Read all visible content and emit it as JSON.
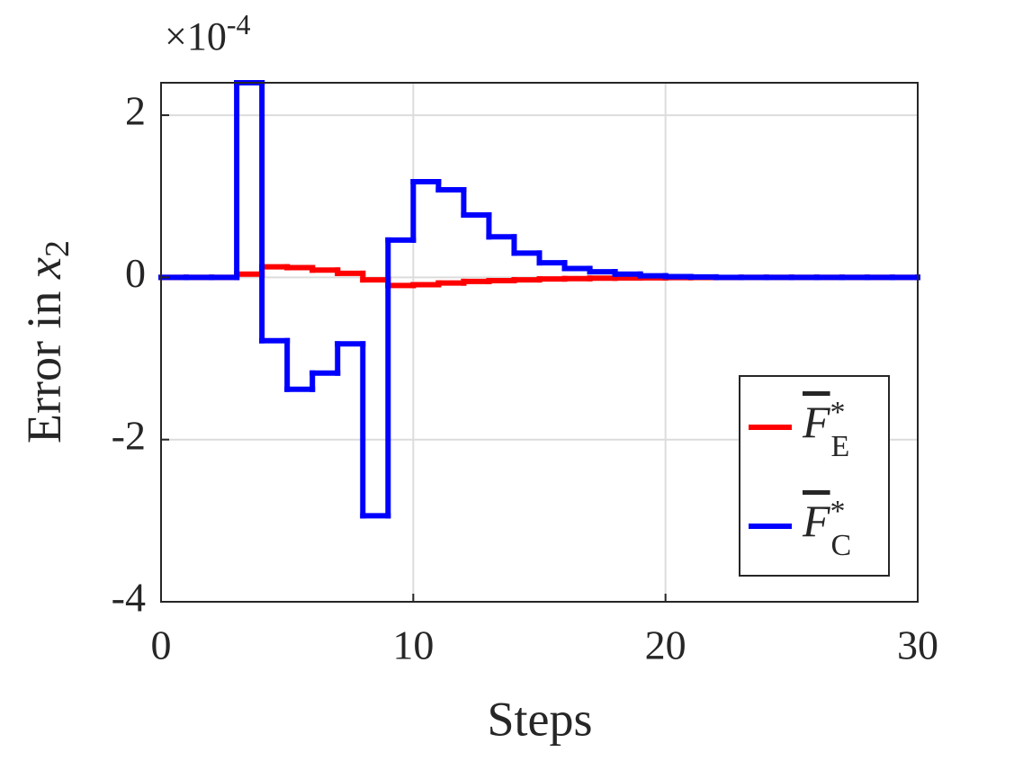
{
  "chart_data": {
    "type": "stairs",
    "xlabel": "Steps",
    "ylabel": {
      "text": "Error in ",
      "var": "x",
      "sub": "2"
    },
    "y_multiplier": {
      "base": "×10",
      "exponent": "-4"
    },
    "x": [
      0,
      1,
      2,
      3,
      4,
      5,
      6,
      7,
      8,
      9,
      10,
      11,
      12,
      13,
      14,
      15,
      16,
      17,
      18,
      19,
      20,
      21,
      22,
      23,
      24,
      25,
      26,
      27,
      28,
      29,
      30
    ],
    "series": [
      {
        "name": {
          "base": "F",
          "sup": "*",
          "sub": "E"
        },
        "color": "#ff0000",
        "values": [
          0,
          0,
          0,
          0.04,
          0.13,
          0.12,
          0.09,
          0.05,
          -0.03,
          -0.1,
          -0.09,
          -0.07,
          -0.05,
          -0.04,
          -0.03,
          -0.02,
          -0.015,
          -0.01,
          -0.007,
          -0.005,
          -0.003,
          -0.002,
          -0.001,
          0,
          0,
          0,
          0,
          0,
          0,
          0,
          0
        ]
      },
      {
        "name": {
          "base": "F",
          "sup": "*",
          "sub": "C"
        },
        "color": "#0000ff",
        "values": [
          0,
          0,
          0,
          2.4,
          -0.78,
          -1.38,
          -1.18,
          -0.82,
          -2.94,
          0.46,
          1.18,
          1.08,
          0.77,
          0.5,
          0.3,
          0.18,
          0.11,
          0.07,
          0.04,
          0.02,
          0.01,
          0.005,
          0,
          0,
          0,
          0,
          0,
          0,
          0,
          0,
          0
        ]
      }
    ],
    "xlim": [
      0,
      30
    ],
    "xticks": [
      0,
      10,
      20,
      30
    ],
    "ylim": [
      -4,
      2.4
    ],
    "yticks": [
      -4,
      -2,
      0,
      2
    ],
    "grid": true,
    "legend": "lower right"
  }
}
